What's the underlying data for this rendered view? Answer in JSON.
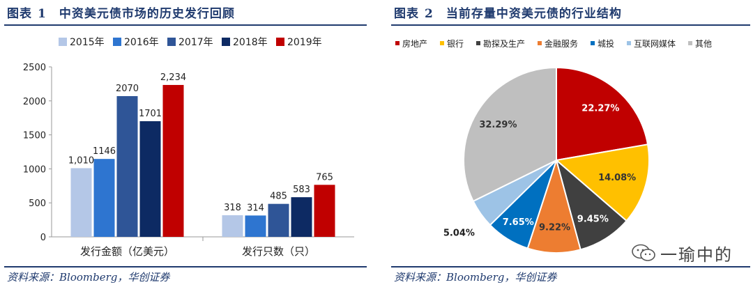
{
  "left": {
    "title_prefix": "图表",
    "title_num": "1",
    "title_text": "中资美元债市场的历史发行回顾",
    "source": "资料来源：Bloomberg，华创证券"
  },
  "right": {
    "title_prefix": "图表",
    "title_num": "2",
    "title_text": "当前存量中资美元债的行业结构",
    "source": "资料来源：Bloomberg，华创证券"
  },
  "watermark": {
    "text": "一瑜中的",
    "icon": "wechat-icon"
  },
  "chart_data": [
    {
      "type": "bar",
      "title": "中资美元债市场的历史发行回顾",
      "categories": [
        "发行金额（亿美元）",
        "发行只数（只）"
      ],
      "series": [
        {
          "name": "2015年",
          "color": "#b4c7e7",
          "values": [
            1010,
            318
          ],
          "labels": [
            "1,010",
            "318"
          ]
        },
        {
          "name": "2016年",
          "color": "#2e75d0",
          "values": [
            1146,
            314
          ],
          "labels": [
            "1146",
            "314"
          ]
        },
        {
          "name": "2017年",
          "color": "#2f5597",
          "values": [
            2070,
            485
          ],
          "labels": [
            "2070",
            "485"
          ]
        },
        {
          "name": "2018年",
          "color": "#0d2a63",
          "values": [
            1701,
            583
          ],
          "labels": [
            "1701",
            "583"
          ]
        },
        {
          "name": "2019年",
          "color": "#c00000",
          "values": [
            2234,
            765
          ],
          "labels": [
            "2,234",
            "765"
          ]
        }
      ],
      "ylim": [
        0,
        2500
      ],
      "yticks": [
        0,
        500,
        1000,
        1500,
        2000,
        2500
      ],
      "xlabel": "",
      "ylabel": "",
      "legend": "top"
    },
    {
      "type": "pie",
      "title": "当前存量中资美元债的行业结构",
      "slices": [
        {
          "label": "房地产",
          "value": 22.27,
          "text": "22.27%",
          "color": "#c00000",
          "text_color": "#ffffff"
        },
        {
          "label": "银行",
          "value": 14.08,
          "text": "14.08%",
          "color": "#ffc000",
          "text_color": "#333333"
        },
        {
          "label": "勘探及生产",
          "value": 9.45,
          "text": "9.45%",
          "color": "#404040",
          "text_color": "#ffffff"
        },
        {
          "label": "金融服务",
          "value": 9.22,
          "text": "9.22%",
          "color": "#ed7d31",
          "text_color": "#333333"
        },
        {
          "label": "城投",
          "value": 7.65,
          "text": "7.65%",
          "color": "#0070c0",
          "text_color": "#ffffff"
        },
        {
          "label": "互联网媒体",
          "value": 5.04,
          "text": "5.04%",
          "color": "#9dc3e6",
          "text_color": "#333333"
        },
        {
          "label": "其他",
          "value": 32.29,
          "text": "32.29%",
          "color": "#bfbfbf",
          "text_color": "#333333"
        }
      ],
      "legend": "top"
    }
  ]
}
